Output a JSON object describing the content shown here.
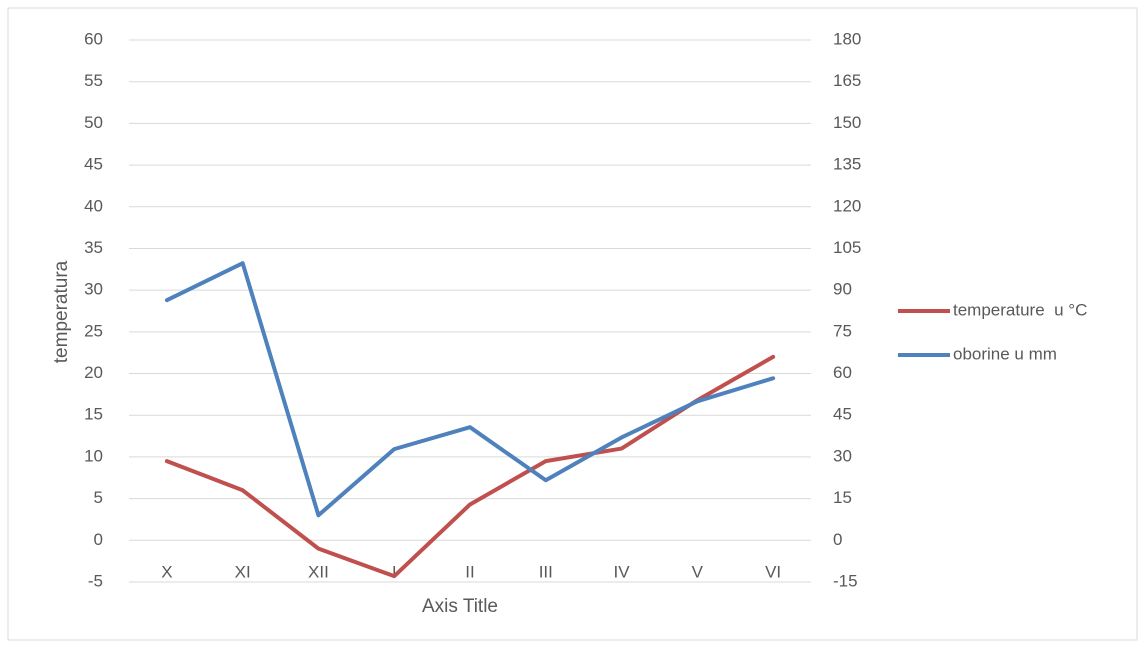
{
  "chart_data": {
    "type": "line",
    "x_label": "Axis Title",
    "y_label": "temperatura",
    "categories": [
      "X",
      "XI",
      "XII",
      "I",
      "II",
      "III",
      "IV",
      "V",
      "VI"
    ],
    "series": [
      {
        "name": "temperature  u °C",
        "color": "#c0504d",
        "values": [
          9.5,
          6.0,
          -1.0,
          -4.3,
          4.3,
          9.5,
          11,
          16.8,
          22
        ]
      },
      {
        "name": "oborine u mm",
        "color": "#4f81bd",
        "axis": "y2",
        "values": [
          86.4,
          99.7,
          9,
          32.8,
          40.7,
          21.6,
          37,
          50,
          58.3
        ]
      }
    ],
    "ylim": [
      -5,
      60
    ],
    "yticks": [
      -5,
      0,
      5,
      10,
      15,
      20,
      25,
      30,
      35,
      40,
      45,
      50,
      55,
      60
    ],
    "y2lim": [
      -15,
      180
    ],
    "y2ticks": [
      -15,
      0,
      15,
      30,
      45,
      60,
      75,
      90,
      105,
      120,
      135,
      150,
      165,
      180
    ],
    "grid": true,
    "legend": "right"
  }
}
